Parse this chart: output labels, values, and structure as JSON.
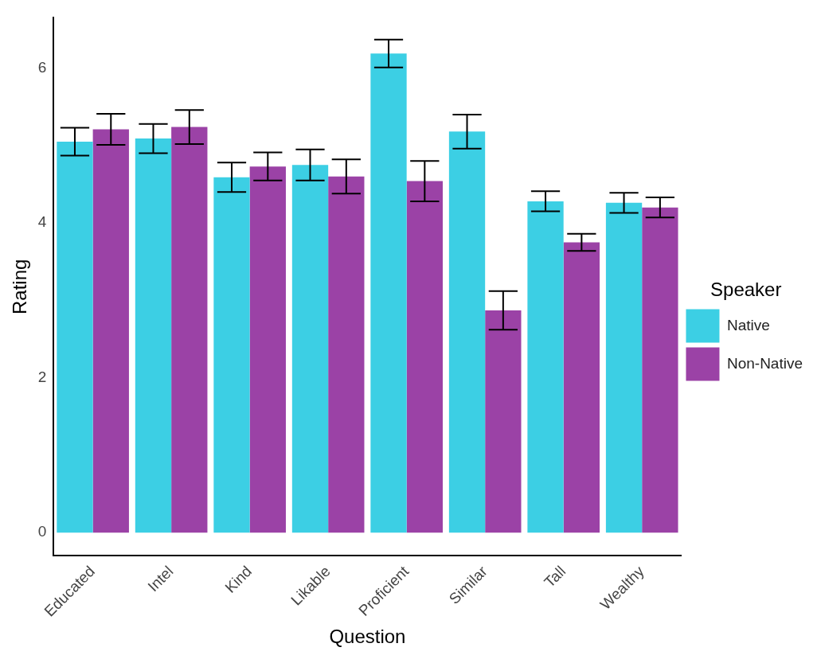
{
  "chart_data": {
    "type": "bar",
    "xlabel": "Question",
    "ylabel": "Rating",
    "legend_title": "Speaker",
    "legend": "right",
    "grid": false,
    "categories": [
      "Educated",
      "Intel",
      "Kind",
      "Likable",
      "Proficient",
      "Similar",
      "Tall",
      "Wealthy"
    ],
    "ylim": [
      -0.3,
      6.65
    ],
    "yticks": [
      0,
      2,
      4,
      6
    ],
    "series": [
      {
        "name": "Native",
        "color": "#3ccfe4",
        "values": [
          5.05,
          5.09,
          4.59,
          4.75,
          6.19,
          5.18,
          4.28,
          4.26
        ],
        "errors": [
          0.18,
          0.19,
          0.19,
          0.2,
          0.18,
          0.22,
          0.13,
          0.13
        ]
      },
      {
        "name": "Non-Native",
        "color": "#9b42a6",
        "values": [
          5.21,
          5.24,
          4.73,
          4.6,
          4.54,
          2.87,
          3.75,
          4.2
        ],
        "errors": [
          0.2,
          0.22,
          0.18,
          0.22,
          0.26,
          0.25,
          0.11,
          0.13
        ]
      }
    ]
  }
}
